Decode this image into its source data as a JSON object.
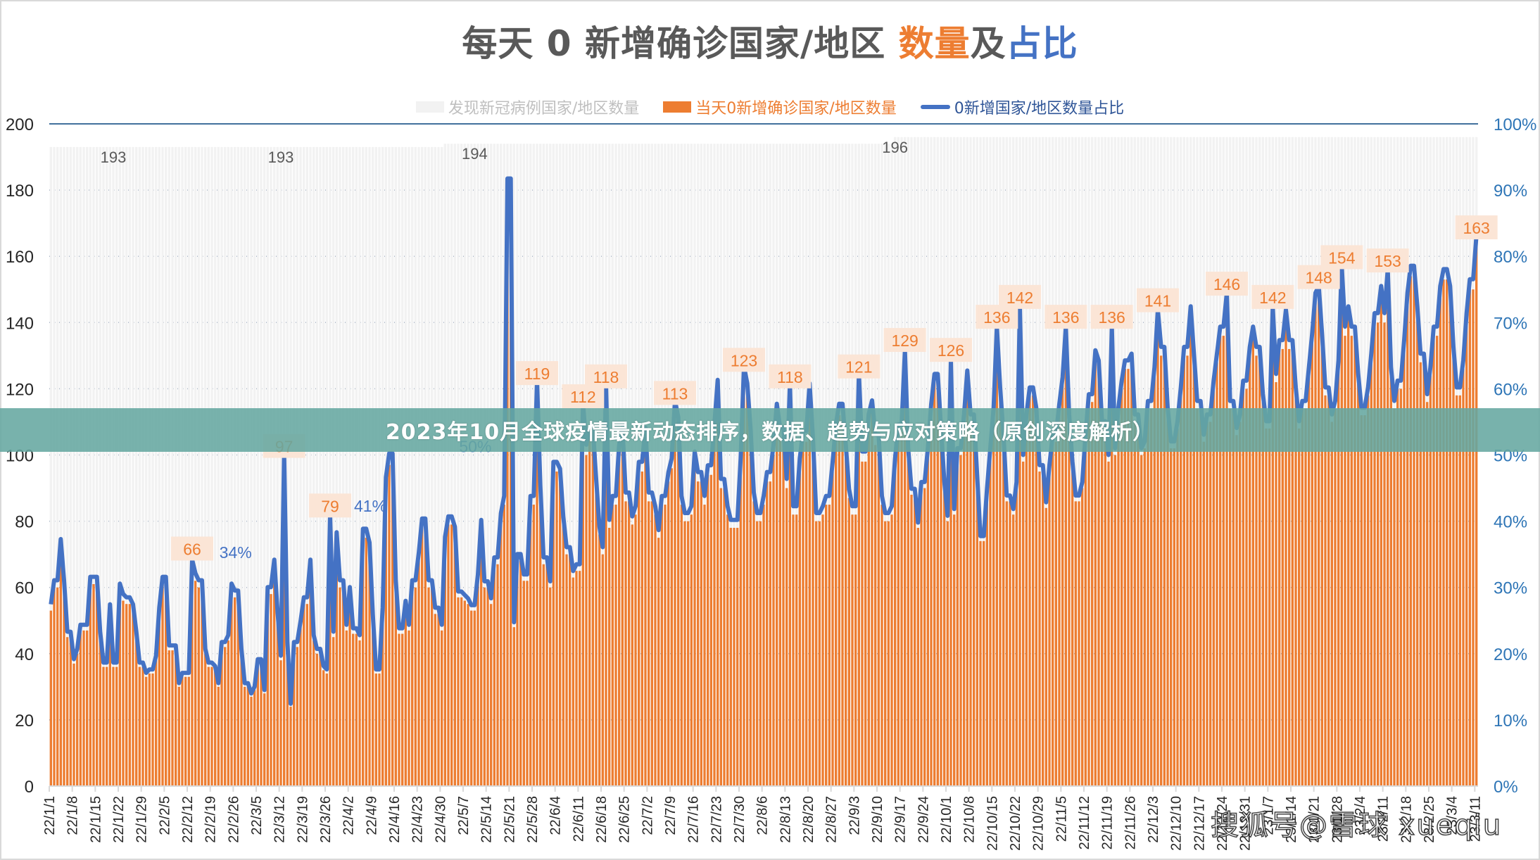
{
  "title": {
    "part1": "每天 0 新增确诊国家/地区 ",
    "part2": "数量",
    "part3": "及",
    "part4": "占比"
  },
  "legend": [
    {
      "label": "发现新冠病例国家/地区数量",
      "color": "#f2f2f2"
    },
    {
      "label": "当天0新增确诊国家/地区数量",
      "color": "#ed7d31"
    },
    {
      "label": "0新增国家/地区数量占比",
      "color": "#4472c4"
    }
  ],
  "banner": {
    "text": "2023年10月全球疫情最新动态排序，数据、趋势与应对策略（原创深度解析）"
  },
  "watermark": {
    "text": "搜狐号@雪球 xueqiu"
  },
  "chart_data": {
    "type": "bar",
    "title": "每天 0 新增确诊国家/地区 数量及占比",
    "xlabel": "",
    "ylabel": "",
    "y_left": {
      "ylim": [
        0,
        200
      ],
      "ticks": [
        0,
        20,
        40,
        60,
        80,
        100,
        120,
        140,
        160,
        180,
        200
      ]
    },
    "y_right": {
      "ylim": [
        0,
        100
      ],
      "ticks": [
        "0%",
        "10%",
        "20%",
        "30%",
        "40%",
        "50%",
        "60%",
        "70%",
        "80%",
        "90%",
        "100%"
      ]
    },
    "grid": "horizontal-dotted",
    "legend_position": "top",
    "start_date": "2022-01-01",
    "end_date": "2023-03-11",
    "x_tick_labels": [
      "22/1/1",
      "22/1/8",
      "22/1/15",
      "22/1/22",
      "22/1/29",
      "22/2/5",
      "22/2/12",
      "22/2/19",
      "22/2/26",
      "22/3/5",
      "22/3/12",
      "22/3/19",
      "22/3/26",
      "22/4/2",
      "22/4/9",
      "22/4/16",
      "22/4/23",
      "22/4/30",
      "22/5/7",
      "22/5/14",
      "22/5/21",
      "22/5/28",
      "22/6/4",
      "22/6/11",
      "22/6/18",
      "22/6/25",
      "22/7/2",
      "22/7/9",
      "22/7/16",
      "22/7/23",
      "22/7/30",
      "22/8/6",
      "22/8/13",
      "22/8/20",
      "22/8/27",
      "22/9/3",
      "22/9/10",
      "22/9/17",
      "22/9/24",
      "22/10/1",
      "22/10/8",
      "22/10/15",
      "22/10/22",
      "22/10/29",
      "22/11/5",
      "22/11/12",
      "22/11/19",
      "22/11/26",
      "22/12/3",
      "22/12/10",
      "22/12/17",
      "22/12/24",
      "22/12/31",
      "23/1/7",
      "23/1/14",
      "23/1/21",
      "23/1/28",
      "23/2/4",
      "23/2/11",
      "23/2/18",
      "23/2/25",
      "23/3/4",
      "23/3/11"
    ],
    "series": [
      {
        "name": "发现新冠病例国家/地区数量",
        "kind": "bar",
        "color": "#f2f2f2",
        "segments": [
          {
            "from": "2022-01-01",
            "to": "2022-04-30",
            "value": 193
          },
          {
            "from": "2022-05-01",
            "to": "2022-09-14",
            "value": 194
          },
          {
            "from": "2022-09-15",
            "to": "2023-03-11",
            "value": 196
          }
        ],
        "labels": [
          {
            "date": "2022-01-20",
            "value": 193
          },
          {
            "date": "2022-03-12",
            "value": 193
          },
          {
            "date": "2022-05-10",
            "value": 194
          },
          {
            "date": "2022-09-15",
            "value": 196
          }
        ]
      },
      {
        "name": "当天0新增确诊国家/地区数量",
        "kind": "bar",
        "color": "#ed7d31",
        "weekly_pattern_note": "daily values; Sunday/Monday peaks",
        "weekly_values": [
          [
            53,
            60,
            72,
            60,
            45,
            37,
            40
          ],
          [
            47,
            47,
            61,
            61,
            45,
            36,
            53
          ],
          [
            36,
            59,
            56,
            55,
            53,
            45,
            36
          ],
          [
            33,
            34,
            38,
            52,
            61,
            41,
            41
          ],
          [
            30,
            33,
            33,
            33,
            62,
            60,
            40
          ],
          [
            36,
            35,
            30,
            42,
            44,
            59,
            57
          ],
          [
            40,
            30,
            27,
            29,
            37,
            28,
            58
          ],
          [
            66,
            51,
            38,
            42,
            24,
            42,
            48
          ],
          [
            55,
            66,
            44,
            40,
            35,
            34,
            45
          ],
          [
            74,
            60,
            47,
            58,
            46,
            44,
            75
          ],
          [
            71,
            50,
            34,
            52,
            90,
            97,
            60
          ],
          [
            46,
            54,
            47,
            60,
            68,
            78,
            60
          ],
          [
            60,
            52,
            47,
            73,
            79,
            76,
            57
          ],
          [
            56,
            55,
            53,
            62,
            78,
            60,
            55
          ],
          [
            67,
            80,
            85,
            178,
            48,
            68,
            62
          ],
          [
            62,
            85,
            93,
            88,
            67,
            60,
            95
          ],
          [
            93,
            79,
            70,
            63,
            65,
            62,
            100
          ],
          [
            105,
            90,
            76,
            70,
            78,
            85,
            100
          ],
          [
            105,
            86,
            79,
            82,
            95,
            105,
            86
          ],
          [
            82,
            75,
            85,
            92,
            96,
            108,
            85
          ],
          [
            80,
            82,
            98,
            92,
            85,
            94,
            106
          ],
          [
            119,
            90,
            82,
            78,
            78,
            96,
            118
          ],
          [
            105,
            86,
            80,
            85,
            92,
            100,
            112
          ],
          [
            105,
            90,
            85,
            82,
            96,
            104,
            118
          ],
          [
            102,
            80,
            82,
            85,
            95,
            106,
            112
          ],
          [
            100,
            87,
            82,
            84,
            98,
            109,
            113
          ],
          [
            103,
            85,
            80,
            82,
            97,
            107,
            113
          ],
          [
            100,
            88,
            78,
            90,
            100,
            113,
            122
          ],
          [
            106,
            90,
            80,
            82,
            100,
            110,
            123
          ],
          [
            110,
            92,
            74,
            88,
            100,
            112,
            118
          ],
          [
            104,
            86,
            82,
            90,
            98,
            110,
            118
          ],
          [
            112,
            95,
            84,
            95,
            104,
            113,
            121
          ],
          [
            110,
            96,
            86,
            90,
            104,
            116,
            129
          ],
          [
            126,
            108,
            98,
            100,
            112,
            120,
            126
          ],
          [
            128,
            110,
            100,
            102,
            114,
            124,
            136
          ],
          [
            130,
            112,
            102,
            108,
            118,
            130,
            142
          ],
          [
            128,
            114,
            104,
            110,
            120,
            128,
            136
          ],
          [
            128,
            114,
            106,
            110,
            120,
            130,
            136
          ],
          [
            130,
            116,
            108,
            112,
            122,
            132,
            141
          ],
          [
            132,
            118,
            108,
            114,
            124,
            134,
            146
          ],
          [
            134,
            118,
            110,
            114,
            126,
            136,
            142
          ],
          [
            136,
            122,
            112,
            118,
            128,
            140,
            148
          ],
          [
            140,
            124,
            114,
            120,
            132,
            146,
            154
          ],
          [
            142,
            128,
            116,
            124,
            136,
            148,
            153
          ],
          [
            148,
            130,
            118,
            126,
            140,
            150,
            163
          ]
        ],
        "labels": [
          {
            "date": "2022-02-13",
            "value": 66
          },
          {
            "date": "2022-03-13",
            "value": 97
          },
          {
            "date": "2022-03-27",
            "value": 79
          },
          {
            "date": "2022-05-29",
            "value": 119
          },
          {
            "date": "2022-06-12",
            "value": 112
          },
          {
            "date": "2022-06-19",
            "value": 118
          },
          {
            "date": "2022-07-10",
            "value": 113
          },
          {
            "date": "2022-07-31",
            "value": 123
          },
          {
            "date": "2022-08-14",
            "value": 118
          },
          {
            "date": "2022-09-04",
            "value": 121
          },
          {
            "date": "2022-09-18",
            "value": 129
          },
          {
            "date": "2022-10-02",
            "value": 126
          },
          {
            "date": "2022-10-16",
            "value": 136
          },
          {
            "date": "2022-10-23",
            "value": 142
          },
          {
            "date": "2022-11-06",
            "value": 136
          },
          {
            "date": "2022-11-20",
            "value": 136
          },
          {
            "date": "2022-12-04",
            "value": 141
          },
          {
            "date": "2022-12-25",
            "value": 146
          },
          {
            "date": "2023-01-08",
            "value": 142
          },
          {
            "date": "2023-01-22",
            "value": 148
          },
          {
            "date": "2023-01-29",
            "value": 154
          },
          {
            "date": "2023-02-12",
            "value": 153
          },
          {
            "date": "2023-03-11",
            "value": 163
          }
        ]
      },
      {
        "name": "0新增国家/地区数量占比",
        "kind": "line",
        "axis": "right",
        "color": "#4472c4",
        "definition": "当天0新增确诊国家/地区数量 ÷ 发现新冠病例国家/地区数量",
        "labels": [
          {
            "date": "2022-02-20",
            "value": "34%"
          },
          {
            "date": "2022-04-02",
            "value": "41%"
          },
          {
            "date": "2022-05-04",
            "value": "50%"
          }
        ],
        "range_pct": [
          12,
          83
        ]
      }
    ]
  }
}
